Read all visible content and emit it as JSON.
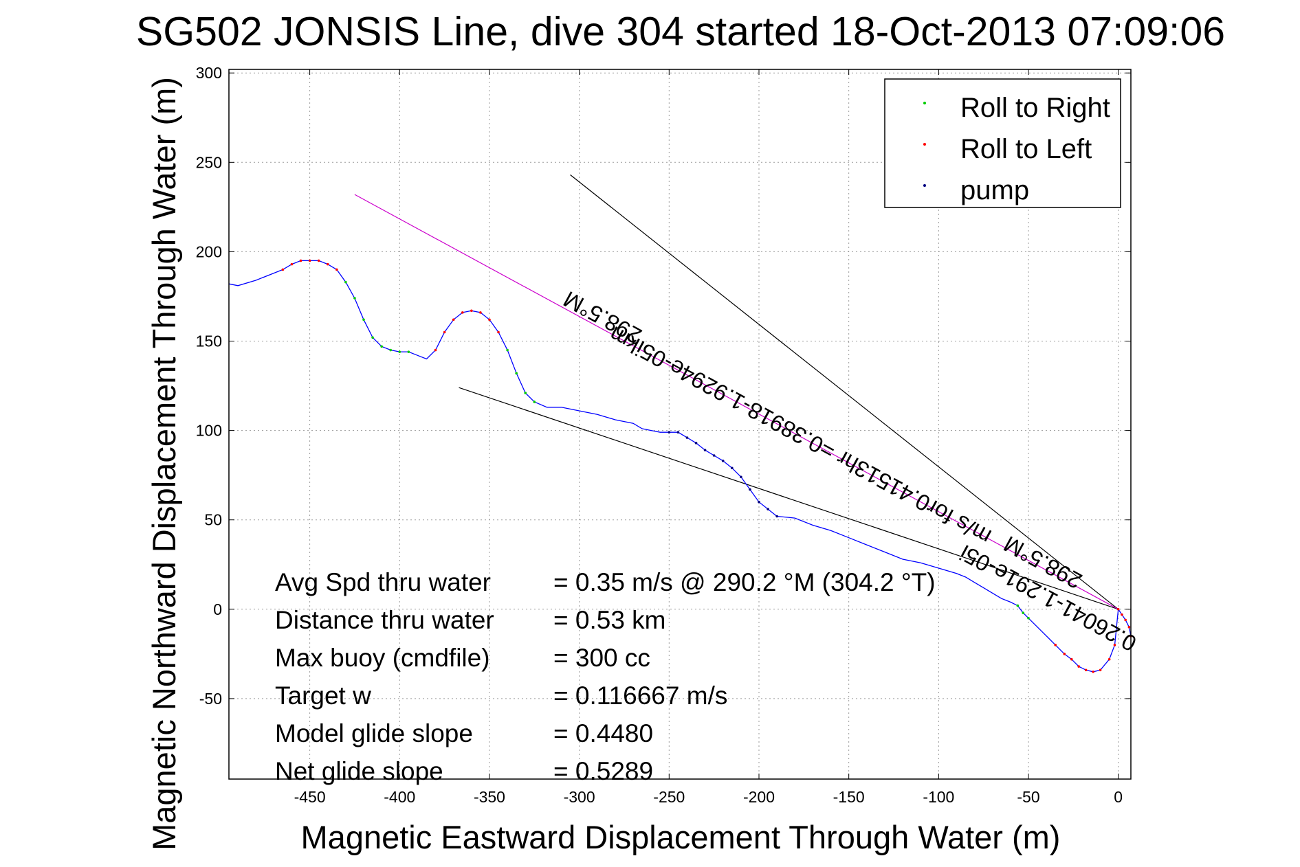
{
  "chart_data": {
    "type": "line",
    "title": "SG502 JONSIS Line, dive 304 started 18-Oct-2013 07:09:06",
    "xlabel": "Magnetic Eastward Displacement Through Water (m)",
    "ylabel": "Magnetic Northward Displacement Through Water (m)",
    "xlim": [
      -495,
      7
    ],
    "ylim": [
      -95,
      302
    ],
    "xticks": [
      -450,
      -400,
      -350,
      -300,
      -250,
      -200,
      -150,
      -100,
      -50,
      0
    ],
    "yticks": [
      300,
      250,
      200,
      150,
      100,
      50,
      0,
      -50
    ],
    "grid": true,
    "legend": {
      "position": "top-right",
      "entries": [
        {
          "label": "Roll to Right",
          "color": "#00cc00"
        },
        {
          "label": "Roll to Left",
          "color": "#ff0000"
        },
        {
          "label": "pump",
          "color": "#000080"
        }
      ]
    },
    "track": {
      "color": "#0000ff",
      "x": [
        7,
        6,
        4,
        2,
        0,
        -2,
        -5,
        -10,
        -14,
        -18,
        -22,
        -26,
        -30,
        -35,
        -40,
        -45,
        -50,
        -53,
        -56,
        -60,
        -65,
        -70,
        -75,
        -80,
        -85,
        -90,
        -100,
        -110,
        -120,
        -130,
        -140,
        -150,
        -160,
        -170,
        -180,
        -190,
        -195,
        -200,
        -205,
        -210,
        -215,
        -220,
        -225,
        -230,
        -235,
        -240,
        -245,
        -250,
        -255,
        -260,
        -265,
        -270,
        -280,
        -290,
        -300,
        -310,
        -318,
        -325,
        -330,
        -335,
        -340,
        -345,
        -350,
        -355,
        -360,
        -365,
        -370,
        -375,
        -380,
        -385,
        -390,
        -395,
        -400,
        -405,
        -410,
        -415,
        -420,
        -425,
        -430,
        -435,
        -440,
        -445,
        -450,
        -455,
        -460,
        -465,
        -470,
        -480,
        -490,
        -495
      ],
      "y": [
        -15,
        -10,
        -6,
        -3,
        0,
        -20,
        -28,
        -34,
        -35,
        -34,
        -32,
        -28,
        -25,
        -20,
        -15,
        -10,
        -5,
        -2,
        2,
        4,
        6,
        9,
        12,
        15,
        18,
        20,
        23,
        26,
        28,
        32,
        36,
        40,
        44,
        47,
        51,
        52,
        56,
        60,
        67,
        74,
        79,
        83,
        86,
        89,
        93,
        96,
        99,
        99,
        99,
        100,
        101,
        104,
        106,
        109,
        111,
        113,
        113,
        116,
        121,
        132,
        145,
        155,
        162,
        166,
        167,
        166,
        162,
        155,
        145,
        140,
        142,
        144,
        144,
        145,
        147,
        152,
        162,
        174,
        183,
        190,
        193,
        195,
        195,
        195,
        193,
        190,
        188,
        184,
        181,
        182
      ]
    },
    "reference_lines": [
      {
        "x": [
          0,
          -305
        ],
        "y": [
          0,
          243
        ],
        "color": "#000000"
      },
      {
        "x": [
          0,
          -367
        ],
        "y": [
          0,
          124
        ],
        "color": "#000000"
      },
      {
        "x": [
          0,
          -425
        ],
        "y": [
          0,
          232
        ],
        "color": "#cc00cc"
      }
    ],
    "rotated_labels": [
      {
        "text": "0.26041-1.291e-05i",
        "x": -37,
        "y": 10,
        "angle_deg": 28.6
      },
      {
        "text": "298.5°M",
        "x": -40,
        "y": 30,
        "angle_deg": 28.6
      },
      {
        "text": "m/s for0.41513hr =0.38918-1.9294e-05ikm",
        "x": -175,
        "y": 101,
        "angle_deg": 28.6
      },
      {
        "text": "298.5°M",
        "x": -285,
        "y": 167,
        "angle_deg": 28.6
      }
    ],
    "stats": [
      {
        "label": "Avg Spd thru water",
        "value": "=  0.35 m/s @ 290.2 °M (304.2 °T)"
      },
      {
        "label": "Distance thru water",
        "value": "=  0.53 km"
      },
      {
        "label": "Max buoy (cmdfile)",
        "value": "= 300 cc"
      },
      {
        "label": "Target w",
        "value": "= 0.116667 m/s"
      },
      {
        "label": "Model glide slope",
        "value": "= 0.4480"
      },
      {
        "label": "Net glide slope",
        "value": "= 0.5289"
      }
    ]
  }
}
